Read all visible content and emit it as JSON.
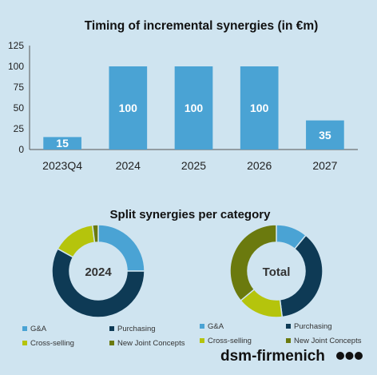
{
  "chart_data": [
    {
      "type": "bar",
      "title": "Timing of incremental synergies (in €m)",
      "categories": [
        "2023Q4",
        "2024",
        "2025",
        "2026",
        "2027"
      ],
      "values": [
        15,
        100,
        100,
        100,
        35
      ],
      "value_labels": [
        "15",
        "100",
        "100",
        "100",
        "35"
      ],
      "ylim": [
        0,
        125
      ],
      "yticks": [
        0,
        25,
        50,
        75,
        100,
        125
      ],
      "ytick_labels": [
        "0",
        "25",
        "50",
        "75",
        "100",
        "125"
      ],
      "xlabel": "",
      "ylabel": "",
      "grid": false,
      "bar_color": "#4aa3d4"
    },
    {
      "type": "pie",
      "title": "Split synergies per category",
      "center_label": "2024",
      "categories": [
        "G&A",
        "Purchasing",
        "Cross-selling",
        "New Joint Concepts"
      ],
      "values": [
        25,
        58,
        15,
        2
      ],
      "colors": [
        "#4aa3d4",
        "#0e3a55",
        "#b5c40c",
        "#6b7a0e"
      ]
    },
    {
      "type": "pie",
      "center_label": "Total",
      "categories": [
        "G&A",
        "Purchasing",
        "Cross-selling",
        "New Joint Concepts"
      ],
      "values": [
        11,
        37,
        16,
        36
      ],
      "colors": [
        "#4aa3d4",
        "#0e3a55",
        "#b5c40c",
        "#6b7a0e"
      ]
    }
  ],
  "subtitle": "Split synergies per category",
  "legend_left": [
    "G&A",
    "Purchasing",
    "Cross-selling",
    "New Joint Concepts"
  ],
  "legend_right": [
    "G&A",
    "Purchasing",
    "Cross-selling",
    "New Joint Concepts"
  ],
  "logo": {
    "text": "dsm-firmenich",
    "icon": "three-dots-logo-icon"
  }
}
